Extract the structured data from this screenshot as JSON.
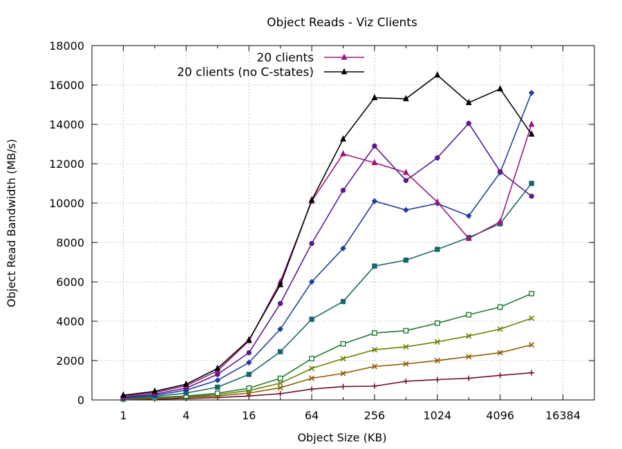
{
  "chart_data": {
    "type": "line",
    "title": "Object Reads - Viz Clients",
    "xlabel": "Object Size (KB)",
    "ylabel": "Object Read Bandwidth (MB/s)",
    "x_scale": "log2",
    "xlim": [
      0.5,
      32768
    ],
    "ylim": [
      0,
      18000
    ],
    "grid": true,
    "legend_position": "top-center",
    "x_ticks": [
      1,
      4,
      16,
      64,
      256,
      1024,
      4096,
      16384
    ],
    "x_tick_labels": [
      "1",
      "4",
      "16",
      "64",
      "256",
      "1024",
      "4096",
      "16384"
    ],
    "y_ticks": [
      0,
      2000,
      4000,
      6000,
      8000,
      10000,
      12000,
      14000,
      16000,
      18000
    ],
    "y_tick_labels": [
      "0",
      "2000",
      "4000",
      "6000",
      "8000",
      "10000",
      "12000",
      "14000",
      "16000",
      "18000"
    ],
    "x": [
      1,
      2,
      4,
      8,
      16,
      32,
      64,
      128,
      256,
      512,
      1024,
      2048,
      4096,
      8192
    ],
    "series": [
      {
        "color": "#6b0f2a",
        "marker": "plus",
        "values": [
          20,
          40,
          70,
          120,
          200,
          320,
          550,
          680,
          700,
          950,
          1030,
          1100,
          1250,
          1380
        ]
      },
      {
        "color": "#8b5a00",
        "marker": "cross",
        "values": [
          40,
          80,
          130,
          200,
          350,
          620,
          1100,
          1350,
          1700,
          1830,
          2000,
          2200,
          2400,
          2800
        ]
      },
      {
        "color": "#6b7f00",
        "marker": "cross",
        "values": [
          50,
          100,
          160,
          270,
          480,
          850,
          1600,
          2100,
          2550,
          2700,
          2950,
          3250,
          3600,
          4150
        ]
      },
      {
        "color": "#1e7a35",
        "marker": "square-open",
        "values": [
          60,
          120,
          200,
          340,
          600,
          1100,
          2100,
          2850,
          3400,
          3520,
          3900,
          4330,
          4720,
          5400
        ]
      },
      {
        "color": "#1a6666",
        "marker": "square",
        "values": [
          80,
          180,
          350,
          650,
          1300,
          2450,
          4100,
          5000,
          6800,
          7100,
          7650,
          8250,
          8950,
          11000
        ]
      },
      {
        "color": "#1f3fa0",
        "marker": "diamond",
        "values": [
          100,
          240,
          500,
          1000,
          1900,
          3600,
          6000,
          7700,
          10100,
          9650,
          9980,
          9350,
          11550,
          15600
        ]
      },
      {
        "color": "#5a1a8c",
        "marker": "circle",
        "values": [
          130,
          300,
          600,
          1300,
          2400,
          4900,
          7950,
          10650,
          12900,
          11150,
          12300,
          14050,
          11600,
          10350
        ]
      },
      {
        "name": "20 clients",
        "color": "#9b1680",
        "marker": "triangle",
        "values": [
          180,
          380,
          720,
          1480,
          3000,
          6000,
          10100,
          12500,
          12050,
          11550,
          10050,
          8200,
          9050,
          14000
        ]
      },
      {
        "name": "20 clients (no C-states)",
        "color": "#000000",
        "marker": "triangle",
        "values": [
          240,
          440,
          800,
          1600,
          3050,
          5850,
          10150,
          13250,
          15350,
          15300,
          16500,
          15100,
          15800,
          13500
        ]
      }
    ]
  }
}
